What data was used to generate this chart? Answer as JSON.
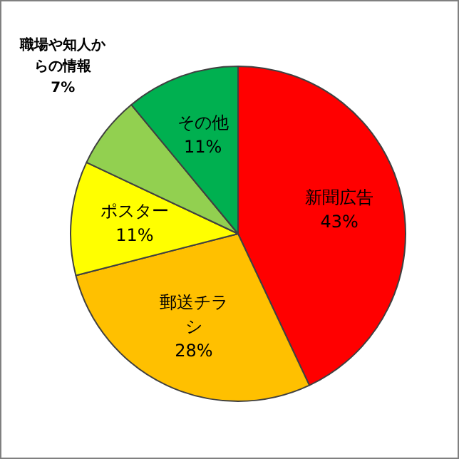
{
  "chart_data": {
    "type": "pie",
    "categories": [
      "新聞広告",
      "郵送チラシ",
      "ポスター",
      "職場や知人からの情報",
      "その他"
    ],
    "values": [
      43,
      28,
      11,
      7,
      11
    ],
    "colors": [
      "#ff0000",
      "#ffc000",
      "#ffff00",
      "#92d050",
      "#00b050"
    ],
    "value_labels": [
      "43%",
      "28%",
      "11%",
      "7%",
      "11%"
    ],
    "legend": false
  }
}
